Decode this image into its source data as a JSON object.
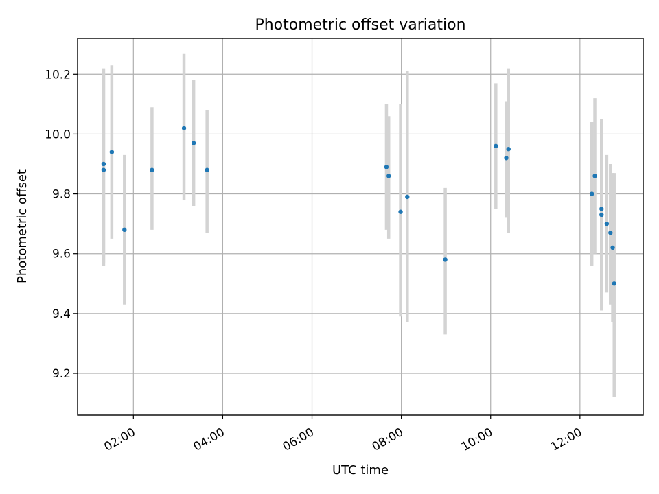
{
  "chart_data": {
    "type": "scatter",
    "title": "Photometric offset variation",
    "xlabel": "UTC time",
    "ylabel": "Photometric offset",
    "xlim": [
      "00:45",
      "13:25"
    ],
    "ylim": [
      9.06,
      10.32
    ],
    "xticks": [
      "02:00",
      "04:00",
      "06:00",
      "08:00",
      "10:00",
      "12:00"
    ],
    "yticks": [
      9.2,
      9.4,
      9.6,
      9.8,
      10.0,
      10.2
    ],
    "grid": true,
    "colors": {
      "marker": "#1f77b4",
      "error_bar": "#d3d3d3",
      "grid": "#b0b0b0"
    },
    "points": [
      {
        "x": "01:20",
        "y": 9.9,
        "err_low": 9.57,
        "err_high": 10.22
      },
      {
        "x": "01:20",
        "y": 9.88,
        "err_low": 9.56,
        "err_high": 10.2
      },
      {
        "x": "01:31",
        "y": 9.94,
        "err_low": 9.65,
        "err_high": 10.23
      },
      {
        "x": "01:48",
        "y": 9.68,
        "err_low": 9.43,
        "err_high": 9.93
      },
      {
        "x": "02:25",
        "y": 9.88,
        "err_low": 9.68,
        "err_high": 10.09
      },
      {
        "x": "03:08",
        "y": 10.02,
        "err_low": 9.78,
        "err_high": 10.27
      },
      {
        "x": "03:21",
        "y": 9.97,
        "err_low": 9.76,
        "err_high": 10.18
      },
      {
        "x": "03:39",
        "y": 9.88,
        "err_low": 9.67,
        "err_high": 10.08
      },
      {
        "x": "07:40",
        "y": 9.89,
        "err_low": 9.68,
        "err_high": 10.1
      },
      {
        "x": "07:43",
        "y": 9.86,
        "err_low": 9.65,
        "err_high": 10.06
      },
      {
        "x": "07:59",
        "y": 9.74,
        "err_low": 9.39,
        "err_high": 10.1
      },
      {
        "x": "08:08",
        "y": 9.79,
        "err_low": 9.37,
        "err_high": 10.21
      },
      {
        "x": "08:59",
        "y": 9.58,
        "err_low": 9.33,
        "err_high": 9.82
      },
      {
        "x": "10:07",
        "y": 9.96,
        "err_low": 9.75,
        "err_high": 10.17
      },
      {
        "x": "10:21",
        "y": 9.92,
        "err_low": 9.72,
        "err_high": 10.11
      },
      {
        "x": "10:24",
        "y": 9.95,
        "err_low": 9.67,
        "err_high": 10.22
      },
      {
        "x": "12:16",
        "y": 9.8,
        "err_low": 9.56,
        "err_high": 10.04
      },
      {
        "x": "12:20",
        "y": 9.86,
        "err_low": 9.6,
        "err_high": 10.12
      },
      {
        "x": "12:29",
        "y": 9.75,
        "err_low": 9.45,
        "err_high": 10.05
      },
      {
        "x": "12:29",
        "y": 9.73,
        "err_low": 9.41,
        "err_high": 10.04
      },
      {
        "x": "12:36",
        "y": 9.7,
        "err_low": 9.47,
        "err_high": 9.93
      },
      {
        "x": "12:41",
        "y": 9.67,
        "err_low": 9.43,
        "err_high": 9.9
      },
      {
        "x": "12:44",
        "y": 9.62,
        "err_low": 9.37,
        "err_high": 9.87
      },
      {
        "x": "12:46",
        "y": 9.5,
        "err_low": 9.12,
        "err_high": 9.87
      }
    ]
  }
}
